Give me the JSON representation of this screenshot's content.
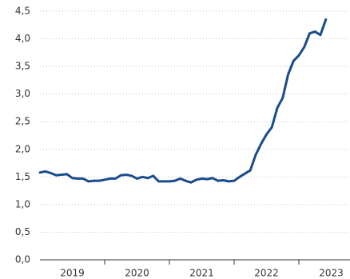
{
  "chart_data": {
    "type": "line",
    "x": [
      2019,
      2019.083,
      2019.167,
      2019.25,
      2019.333,
      2019.417,
      2019.5,
      2019.583,
      2019.667,
      2019.75,
      2019.833,
      2019.917,
      2020,
      2020.083,
      2020.167,
      2020.25,
      2020.333,
      2020.417,
      2020.5,
      2020.583,
      2020.667,
      2020.75,
      2020.833,
      2020.917,
      2021,
      2021.083,
      2021.167,
      2021.25,
      2021.333,
      2021.417,
      2021.5,
      2021.583,
      2021.667,
      2021.75,
      2021.833,
      2021.917,
      2022,
      2022.083,
      2022.167,
      2022.25,
      2022.333,
      2022.417,
      2022.5,
      2022.583,
      2022.667,
      2022.75,
      2022.833,
      2022.917,
      2023,
      2023.083,
      2023.167,
      2023.25,
      2023.333,
      2023.417
    ],
    "series": [
      {
        "color": "#1a4b8c",
        "values": [
          1.58,
          1.6,
          1.57,
          1.53,
          1.54,
          1.55,
          1.48,
          1.47,
          1.47,
          1.42,
          1.43,
          1.43,
          1.45,
          1.47,
          1.47,
          1.53,
          1.54,
          1.52,
          1.47,
          1.5,
          1.48,
          1.52,
          1.42,
          1.42,
          1.42,
          1.43,
          1.47,
          1.43,
          1.4,
          1.45,
          1.47,
          1.46,
          1.48,
          1.43,
          1.44,
          1.42,
          1.43,
          1.5,
          1.56,
          1.62,
          1.9,
          2.1,
          2.27,
          2.4,
          2.75,
          2.93,
          3.35,
          3.6,
          3.7,
          3.85,
          4.1,
          4.13,
          4.07,
          4.35
        ]
      }
    ],
    "xlim": [
      2019,
      2023.79
    ],
    "xticks": [
      {
        "value": 2019.5,
        "label": "2019"
      },
      {
        "value": 2020.5,
        "label": "2020"
      },
      {
        "value": 2021.5,
        "label": "2021"
      },
      {
        "value": 2022.5,
        "label": "2022"
      },
      {
        "value": 2023.5,
        "label": "2023"
      }
    ],
    "ylim": [
      0,
      4.5
    ],
    "yticks": [
      {
        "value": 0,
        "label": "0,0"
      },
      {
        "value": 0.5,
        "label": "0,5"
      },
      {
        "value": 1,
        "label": "1,0"
      },
      {
        "value": 1.5,
        "label": "1,5"
      },
      {
        "value": 2,
        "label": "2,0"
      },
      {
        "value": 2.5,
        "label": "2,5"
      },
      {
        "value": 3,
        "label": "3,0"
      },
      {
        "value": 3.5,
        "label": "3,5"
      },
      {
        "value": 4,
        "label": "4,0"
      },
      {
        "value": 4.5,
        "label": "4,5"
      }
    ],
    "grid": true
  }
}
